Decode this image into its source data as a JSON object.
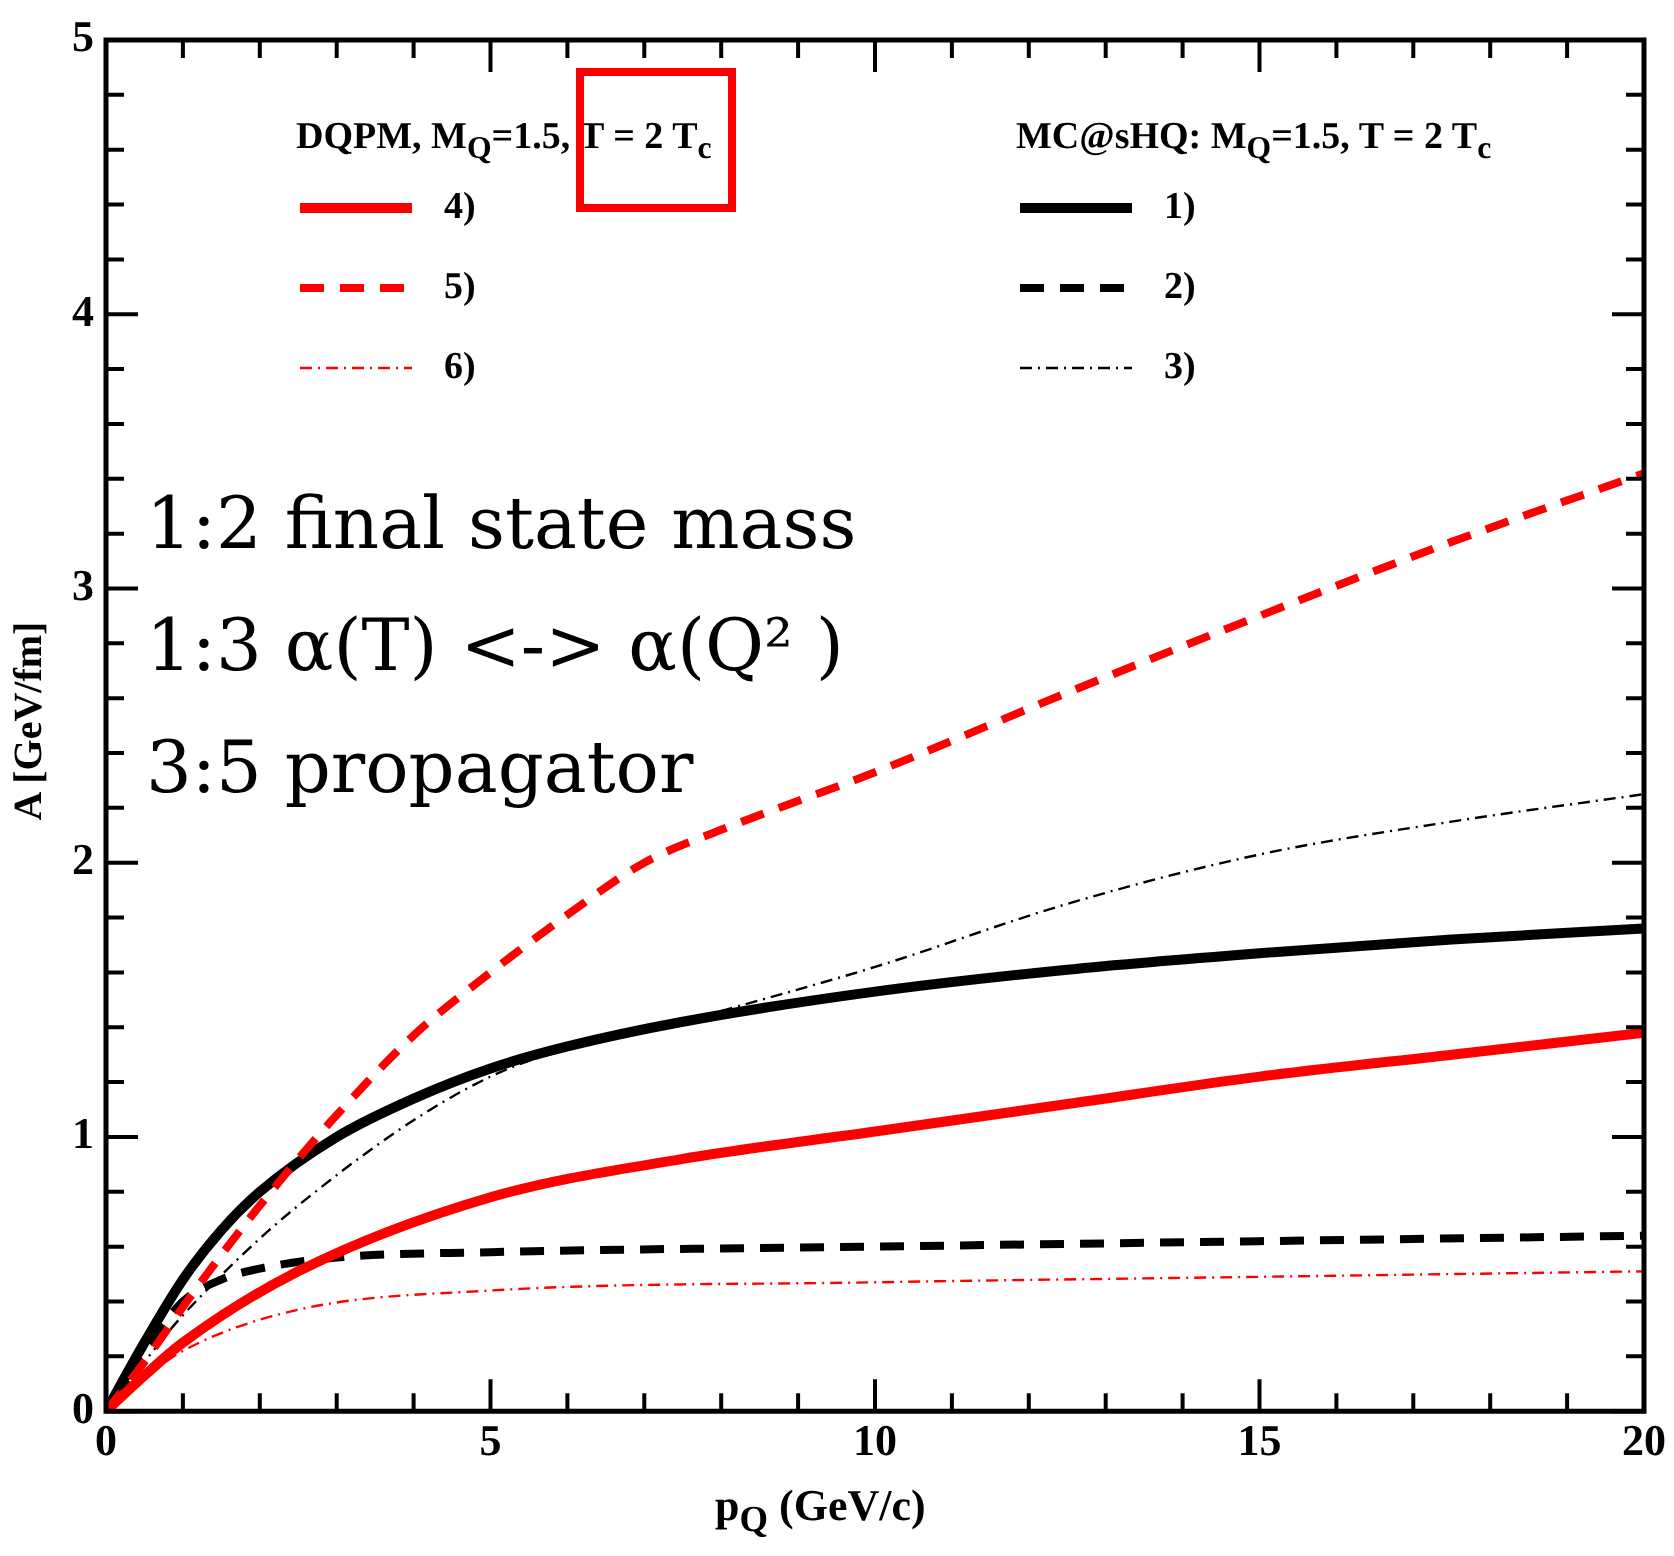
{
  "chart_data": {
    "type": "line",
    "xlabel": "p$_{Q}$ (GeV/c)",
    "ylabel": "A [GeV/fm]",
    "annotations": [
      "DQPM, M$_{Q}$=1.5, T = 2 T$_{c}$",
      "MC@sHQ: M$_{Q}$=1.5, T = 2 T$_{c}$",
      "1:2 final state mass",
      "1:3 α(T) <-> α(Q² )",
      "3:5 propagator"
    ],
    "legend": "top",
    "grid": false,
    "marker": "none",
    "xlim": [
      0,
      20
    ],
    "ylim": [
      0,
      5
    ],
    "xticks": [
      0,
      {
        "value": 1,
        "label": null
      },
      {
        "value": 2,
        "label": null
      },
      {
        "value": 3,
        "label": null
      },
      {
        "value": 4,
        "label": null
      },
      5,
      {
        "value": 6,
        "label": null
      },
      {
        "value": 7,
        "label": null
      },
      {
        "value": 8,
        "label": null
      },
      {
        "value": 9,
        "label": null
      },
      10,
      {
        "value": 11,
        "label": null
      },
      {
        "value": 12,
        "label": null
      },
      {
        "value": 13,
        "label": null
      },
      {
        "value": 14,
        "label": null
      },
      15,
      {
        "value": 16,
        "label": null
      },
      {
        "value": 17,
        "label": null
      },
      {
        "value": 18,
        "label": null
      },
      {
        "value": 19,
        "label": null
      },
      20
    ],
    "yticks": [
      0,
      {
        "value": 0.2,
        "label": null
      },
      {
        "value": 0.4,
        "label": null
      },
      {
        "value": 0.6,
        "label": null
      },
      {
        "value": 0.8,
        "label": null
      },
      1,
      {
        "value": 1.2,
        "label": null
      },
      {
        "value": 1.4,
        "label": null
      },
      {
        "value": 1.6,
        "label": null
      },
      {
        "value": 1.8,
        "label": null
      },
      2,
      {
        "value": 2.2,
        "label": null
      },
      {
        "value": 2.4,
        "label": null
      },
      {
        "value": 2.6,
        "label": null
      },
      {
        "value": 2.8,
        "label": null
      },
      3,
      {
        "value": 3.2,
        "label": null
      },
      {
        "value": 3.4,
        "label": null
      },
      {
        "value": 3.6,
        "label": null
      },
      {
        "value": 3.8,
        "label": null
      },
      4,
      {
        "value": 4.2,
        "label": null
      },
      {
        "value": 4.4,
        "label": null
      },
      {
        "value": 4.6,
        "label": null
      },
      {
        "value": 4.8,
        "label": null
      },
      5
    ],
    "series": [
      {
        "name": "4)",
        "color": "#ff0000",
        "line_style": "solid",
        "x": [
          0,
          0.5,
          1,
          2.5,
          5,
          7.5,
          10,
          12.5,
          15,
          17.5,
          20
        ],
        "values": [
          0,
          0.13,
          0.25,
          0.51,
          0.78,
          0.92,
          1.02,
          1.12,
          1.22,
          1.3,
          1.38
        ]
      },
      {
        "name": "5)",
        "color": "#ff0000",
        "line_style": "dashed",
        "x": [
          0,
          0.5,
          1,
          1.5,
          2,
          2.5,
          3,
          4,
          5,
          6,
          7,
          8,
          10,
          12.5,
          15,
          17.5,
          20
        ],
        "values": [
          0,
          0.18,
          0.38,
          0.57,
          0.75,
          0.92,
          1.08,
          1.37,
          1.6,
          1.81,
          2.0,
          2.12,
          2.33,
          2.62,
          2.9,
          3.17,
          3.42
        ]
      },
      {
        "name": "6)",
        "color": "#ff0000",
        "line_style": "dotted",
        "x": [
          0,
          0.5,
          1,
          2.5,
          5,
          10,
          15,
          20
        ],
        "values": [
          0,
          0.12,
          0.22,
          0.37,
          0.44,
          0.47,
          0.49,
          0.51
        ]
      },
      {
        "name": "1)",
        "color": "#000000",
        "line_style": "solid",
        "x": [
          0,
          0.5,
          1,
          1.5,
          2,
          3,
          4,
          5,
          6,
          7.5,
          10,
          12.5,
          15,
          17.5,
          20
        ],
        "values": [
          0,
          0.25,
          0.48,
          0.66,
          0.8,
          1.0,
          1.14,
          1.25,
          1.33,
          1.42,
          1.53,
          1.61,
          1.67,
          1.72,
          1.76
        ]
      },
      {
        "name": "2)",
        "color": "#000000",
        "line_style": "dashed",
        "x": [
          0,
          0.5,
          1,
          1.5,
          2,
          3,
          5,
          10,
          15,
          20
        ],
        "values": [
          0,
          0.22,
          0.4,
          0.48,
          0.52,
          0.56,
          0.58,
          0.6,
          0.62,
          0.64
        ]
      },
      {
        "name": "3)",
        "color": "#000000",
        "line_style": "dotted",
        "x": [
          0,
          0.5,
          1,
          2.5,
          5,
          7.5,
          10,
          12.5,
          15,
          17.5,
          20
        ],
        "values": [
          0,
          0.18,
          0.35,
          0.75,
          1.22,
          1.42,
          1.62,
          1.85,
          2.03,
          2.15,
          2.25
        ]
      }
    ]
  }
}
